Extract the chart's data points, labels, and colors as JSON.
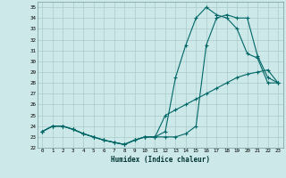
{
  "xlabel": "Humidex (Indice chaleur)",
  "xlim": [
    -0.5,
    23.5
  ],
  "ylim": [
    22,
    35.5
  ],
  "yticks": [
    22,
    23,
    24,
    25,
    26,
    27,
    28,
    29,
    30,
    31,
    32,
    33,
    34,
    35
  ],
  "xticks": [
    0,
    1,
    2,
    3,
    4,
    5,
    6,
    7,
    8,
    9,
    10,
    11,
    12,
    13,
    14,
    15,
    16,
    17,
    18,
    19,
    20,
    21,
    22,
    23
  ],
  "background_color": "#cce8e8",
  "grid_color": "#aacccc",
  "line_color": "#006666",
  "series1_x": [
    0,
    1,
    2,
    3,
    4,
    5,
    6,
    7,
    8,
    9,
    10,
    11,
    12,
    13,
    14,
    15,
    16,
    17,
    18,
    19,
    20,
    21,
    22,
    23
  ],
  "series1_y": [
    23.5,
    24,
    24,
    23.7,
    23.3,
    23.0,
    22.7,
    22.5,
    22.3,
    22.7,
    23.0,
    23.0,
    23.0,
    23.0,
    23.3,
    24.0,
    31.5,
    34.0,
    34.3,
    34.0,
    34.0,
    30.5,
    28.5,
    28.0
  ],
  "series2_x": [
    0,
    1,
    2,
    3,
    4,
    5,
    6,
    7,
    8,
    9,
    10,
    11,
    12,
    13,
    14,
    15,
    16,
    17,
    18,
    19,
    20,
    21,
    22,
    23
  ],
  "series2_y": [
    23.5,
    24,
    24,
    23.7,
    23.3,
    23.0,
    22.7,
    22.5,
    22.3,
    22.7,
    23.0,
    23.0,
    23.5,
    28.5,
    31.5,
    34.0,
    35.0,
    34.3,
    34.0,
    33.0,
    30.7,
    30.3,
    28.0,
    28.0
  ],
  "series3_x": [
    0,
    1,
    2,
    3,
    4,
    5,
    6,
    7,
    8,
    9,
    10,
    11,
    12,
    13,
    14,
    15,
    16,
    17,
    18,
    19,
    20,
    21,
    22,
    23
  ],
  "series3_y": [
    23.5,
    24,
    24,
    23.7,
    23.3,
    23.0,
    22.7,
    22.5,
    22.3,
    22.7,
    23.0,
    23.0,
    25.0,
    25.5,
    26.0,
    26.5,
    27.0,
    27.5,
    28.0,
    28.5,
    28.8,
    29.0,
    29.2,
    28.0
  ]
}
